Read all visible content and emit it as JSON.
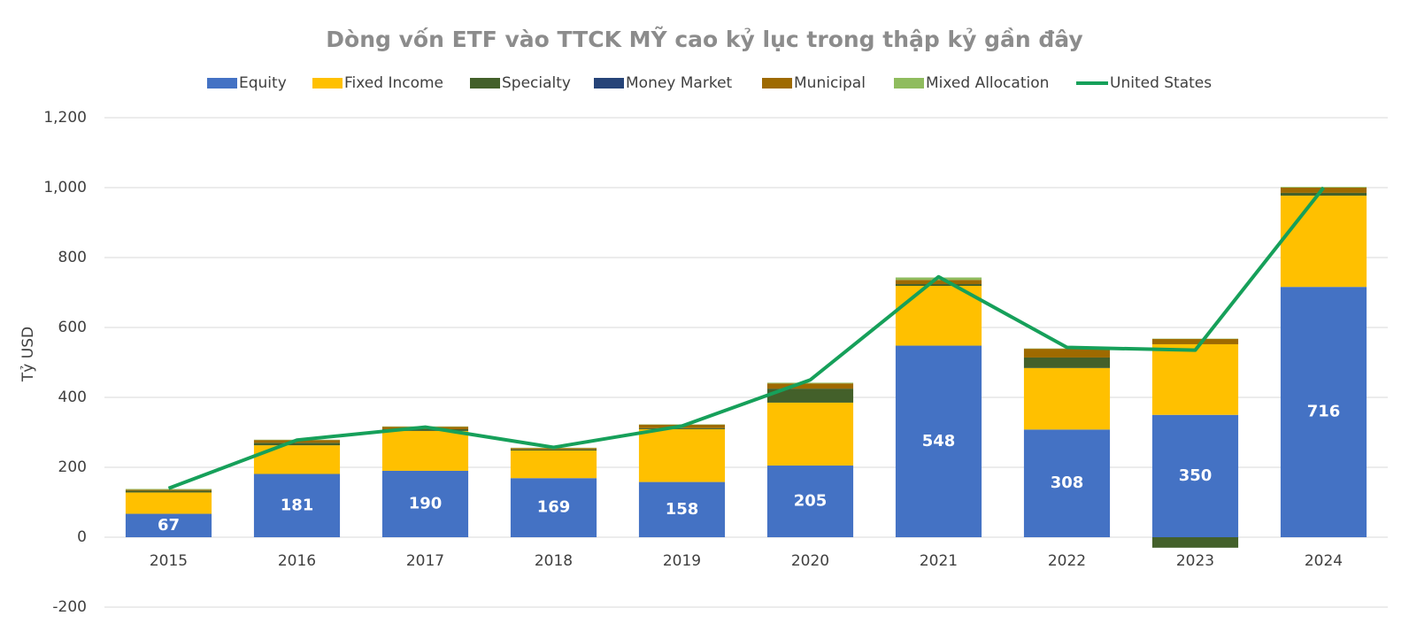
{
  "chart_data": {
    "type": "bar",
    "stacked": true,
    "title": "Dòng vốn ETF vào TTCK MỸ cao kỷ lục trong thập kỷ gần đây",
    "y_label": "Tỷ USD",
    "categories": [
      "2015",
      "2016",
      "2017",
      "2018",
      "2019",
      "2020",
      "2021",
      "2022",
      "2023",
      "2024"
    ],
    "series": [
      {
        "name": "Equity",
        "color": "#4472c4",
        "values": [
          67,
          181,
          190,
          169,
          158,
          205,
          548,
          308,
          350,
          716
        ],
        "data_labels": true
      },
      {
        "name": "Fixed Income",
        "color": "#ffc000",
        "values": [
          61,
          82,
          114,
          79,
          151,
          180,
          171,
          176,
          202,
          261
        ]
      },
      {
        "name": "Specialty",
        "color": "#43602a",
        "values": [
          5,
          7,
          5,
          3,
          3,
          40,
          5,
          30,
          -30,
          8
        ]
      },
      {
        "name": "Money Market",
        "color": "#264478",
        "values": [
          0,
          0,
          0,
          0,
          0,
          0,
          0,
          0,
          0,
          0
        ]
      },
      {
        "name": "Municipal",
        "color": "#9e6a00",
        "values": [
          3,
          8,
          7,
          4,
          10,
          15,
          12,
          25,
          15,
          15
        ]
      },
      {
        "name": "Mixed Allocation",
        "color": "#8fbc5e",
        "values": [
          2,
          1,
          1,
          1,
          1,
          2,
          7,
          1,
          1,
          2
        ]
      },
      {
        "name": "United States",
        "color": "#16a05a",
        "type": "line",
        "values": [
          140,
          278,
          315,
          257,
          318,
          450,
          745,
          543,
          535,
          1000
        ]
      }
    ],
    "ylim": [
      -200,
      1200
    ],
    "yticks": [
      -200,
      0,
      200,
      400,
      600,
      800,
      {
        "value": 1000,
        "label": "1,000"
      },
      {
        "value": 1200,
        "label": "1,200"
      }
    ],
    "grid": true,
    "legend": "top"
  }
}
